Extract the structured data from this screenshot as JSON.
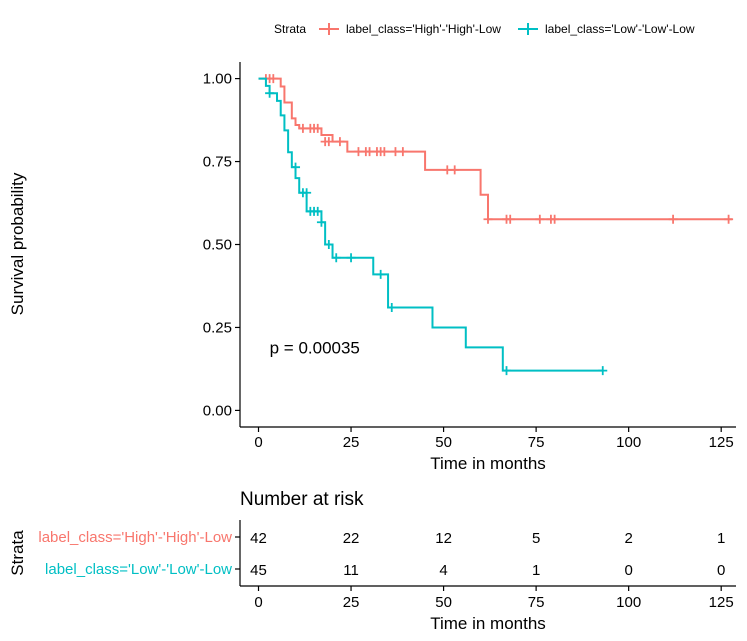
{
  "chart_data": [
    {
      "type": "line",
      "subtype": "kaplan-meier survival curve",
      "xlabel": "Time in months",
      "ylabel": "Survival probability",
      "xlim": [
        -5,
        129
      ],
      "ylim": [
        -0.05,
        1.05
      ],
      "x_ticks": [
        0,
        25,
        50,
        75,
        100,
        125
      ],
      "x_tick_labels": [
        "0",
        "25",
        "50",
        "75",
        "100",
        "125"
      ],
      "y_ticks": [
        0,
        0.25,
        0.5,
        0.75,
        1.0
      ],
      "y_tick_labels": [
        "0.00",
        "0.25",
        "0.50",
        "0.75",
        "1.00"
      ],
      "grid": false,
      "legend_title": "Strata",
      "legend_position": "top",
      "annotation": "p = 0.00035",
      "annotation_at": {
        "x": 3,
        "y": 0.19
      },
      "series": [
        {
          "name": "label_class='High'-'High'-Low",
          "color": "#F8766D",
          "steps": [
            [
              0,
              1.0
            ],
            [
              6,
              0.976
            ],
            [
              7,
              0.928
            ],
            [
              9,
              0.88
            ],
            [
              10,
              0.86
            ],
            [
              11,
              0.85
            ],
            [
              17,
              0.83
            ],
            [
              20,
              0.81
            ],
            [
              24,
              0.78
            ],
            [
              45,
              0.725
            ],
            [
              60,
              0.65
            ],
            [
              62,
              0.576
            ],
            [
              128,
              0.576
            ]
          ],
          "censored": [
            [
              2,
              1.0
            ],
            [
              3,
              1.0
            ],
            [
              4,
              1.0
            ],
            [
              12,
              0.85
            ],
            [
              14,
              0.85
            ],
            [
              15,
              0.85
            ],
            [
              16,
              0.85
            ],
            [
              18,
              0.81
            ],
            [
              19,
              0.81
            ],
            [
              22,
              0.81
            ],
            [
              27,
              0.78
            ],
            [
              29,
              0.78
            ],
            [
              30,
              0.78
            ],
            [
              32,
              0.78
            ],
            [
              33,
              0.78
            ],
            [
              34,
              0.78
            ],
            [
              37,
              0.78
            ],
            [
              39,
              0.78
            ],
            [
              51,
              0.725
            ],
            [
              53,
              0.725
            ],
            [
              62,
              0.576
            ],
            [
              67,
              0.576
            ],
            [
              68,
              0.576
            ],
            [
              76,
              0.576
            ],
            [
              79,
              0.576
            ],
            [
              80,
              0.576
            ],
            [
              112,
              0.576
            ],
            [
              127,
              0.576
            ]
          ]
        },
        {
          "name": "label_class='Low'-'Low'-Low",
          "color": "#00BFC4",
          "steps": [
            [
              0,
              1.0
            ],
            [
              2,
              0.978
            ],
            [
              3,
              0.956
            ],
            [
              5,
              0.933
            ],
            [
              6,
              0.889
            ],
            [
              7,
              0.844
            ],
            [
              8,
              0.778
            ],
            [
              9,
              0.733
            ],
            [
              10,
              0.7
            ],
            [
              11,
              0.656
            ],
            [
              13,
              0.6
            ],
            [
              17,
              0.567
            ],
            [
              18,
              0.5
            ],
            [
              20,
              0.46
            ],
            [
              31,
              0.41
            ],
            [
              35,
              0.31
            ],
            [
              47,
              0.25
            ],
            [
              56,
              0.19
            ],
            [
              66,
              0.12
            ],
            [
              93,
              0.12
            ]
          ],
          "censored": [
            [
              3,
              0.956
            ],
            [
              10,
              0.733
            ],
            [
              12,
              0.656
            ],
            [
              13,
              0.656
            ],
            [
              14,
              0.6
            ],
            [
              15,
              0.6
            ],
            [
              16,
              0.6
            ],
            [
              17,
              0.567
            ],
            [
              19,
              0.5
            ],
            [
              21,
              0.46
            ],
            [
              25,
              0.46
            ],
            [
              33,
              0.41
            ],
            [
              36,
              0.31
            ],
            [
              67,
              0.12
            ],
            [
              93,
              0.12
            ]
          ]
        }
      ]
    },
    {
      "type": "table",
      "title": "Number at risk",
      "ylabel": "Strata",
      "xlabel": "Time in months",
      "x_ticks": [
        0,
        25,
        50,
        75,
        100,
        125
      ],
      "x_tick_labels": [
        "0",
        "25",
        "50",
        "75",
        "100",
        "125"
      ],
      "rows": [
        {
          "name": "label_class='High'-'High'-Low",
          "color": "#F8766D",
          "values": [
            42,
            22,
            12,
            5,
            2,
            1
          ]
        },
        {
          "name": "label_class='Low'-'Low'-Low",
          "color": "#00BFC4",
          "values": [
            45,
            11,
            4,
            1,
            0,
            0
          ]
        }
      ]
    }
  ]
}
